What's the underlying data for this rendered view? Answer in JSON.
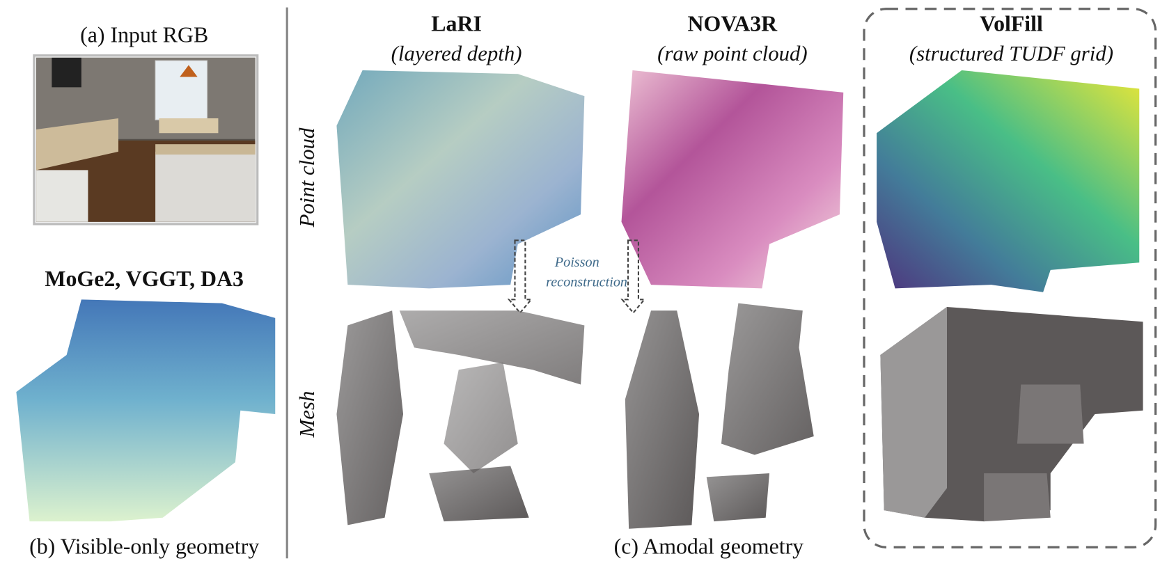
{
  "panel_a": {
    "title": "(a) Input RGB"
  },
  "panel_b": {
    "methods": "MoGe2, VGGT, DA3",
    "caption": "(b) Visible-only geometry"
  },
  "panel_c": {
    "columns": [
      {
        "name": "LaRI",
        "subtitle": "(layered depth)"
      },
      {
        "name": "NOVA3R",
        "subtitle": "(raw point cloud)"
      },
      {
        "name": "VolFill",
        "subtitle": "(structured TUDF grid)"
      }
    ],
    "row_labels": [
      "Point cloud",
      "Mesh"
    ],
    "annotation": [
      "Poisson",
      "reconstruction"
    ],
    "caption": "(c) Amodal geometry"
  }
}
